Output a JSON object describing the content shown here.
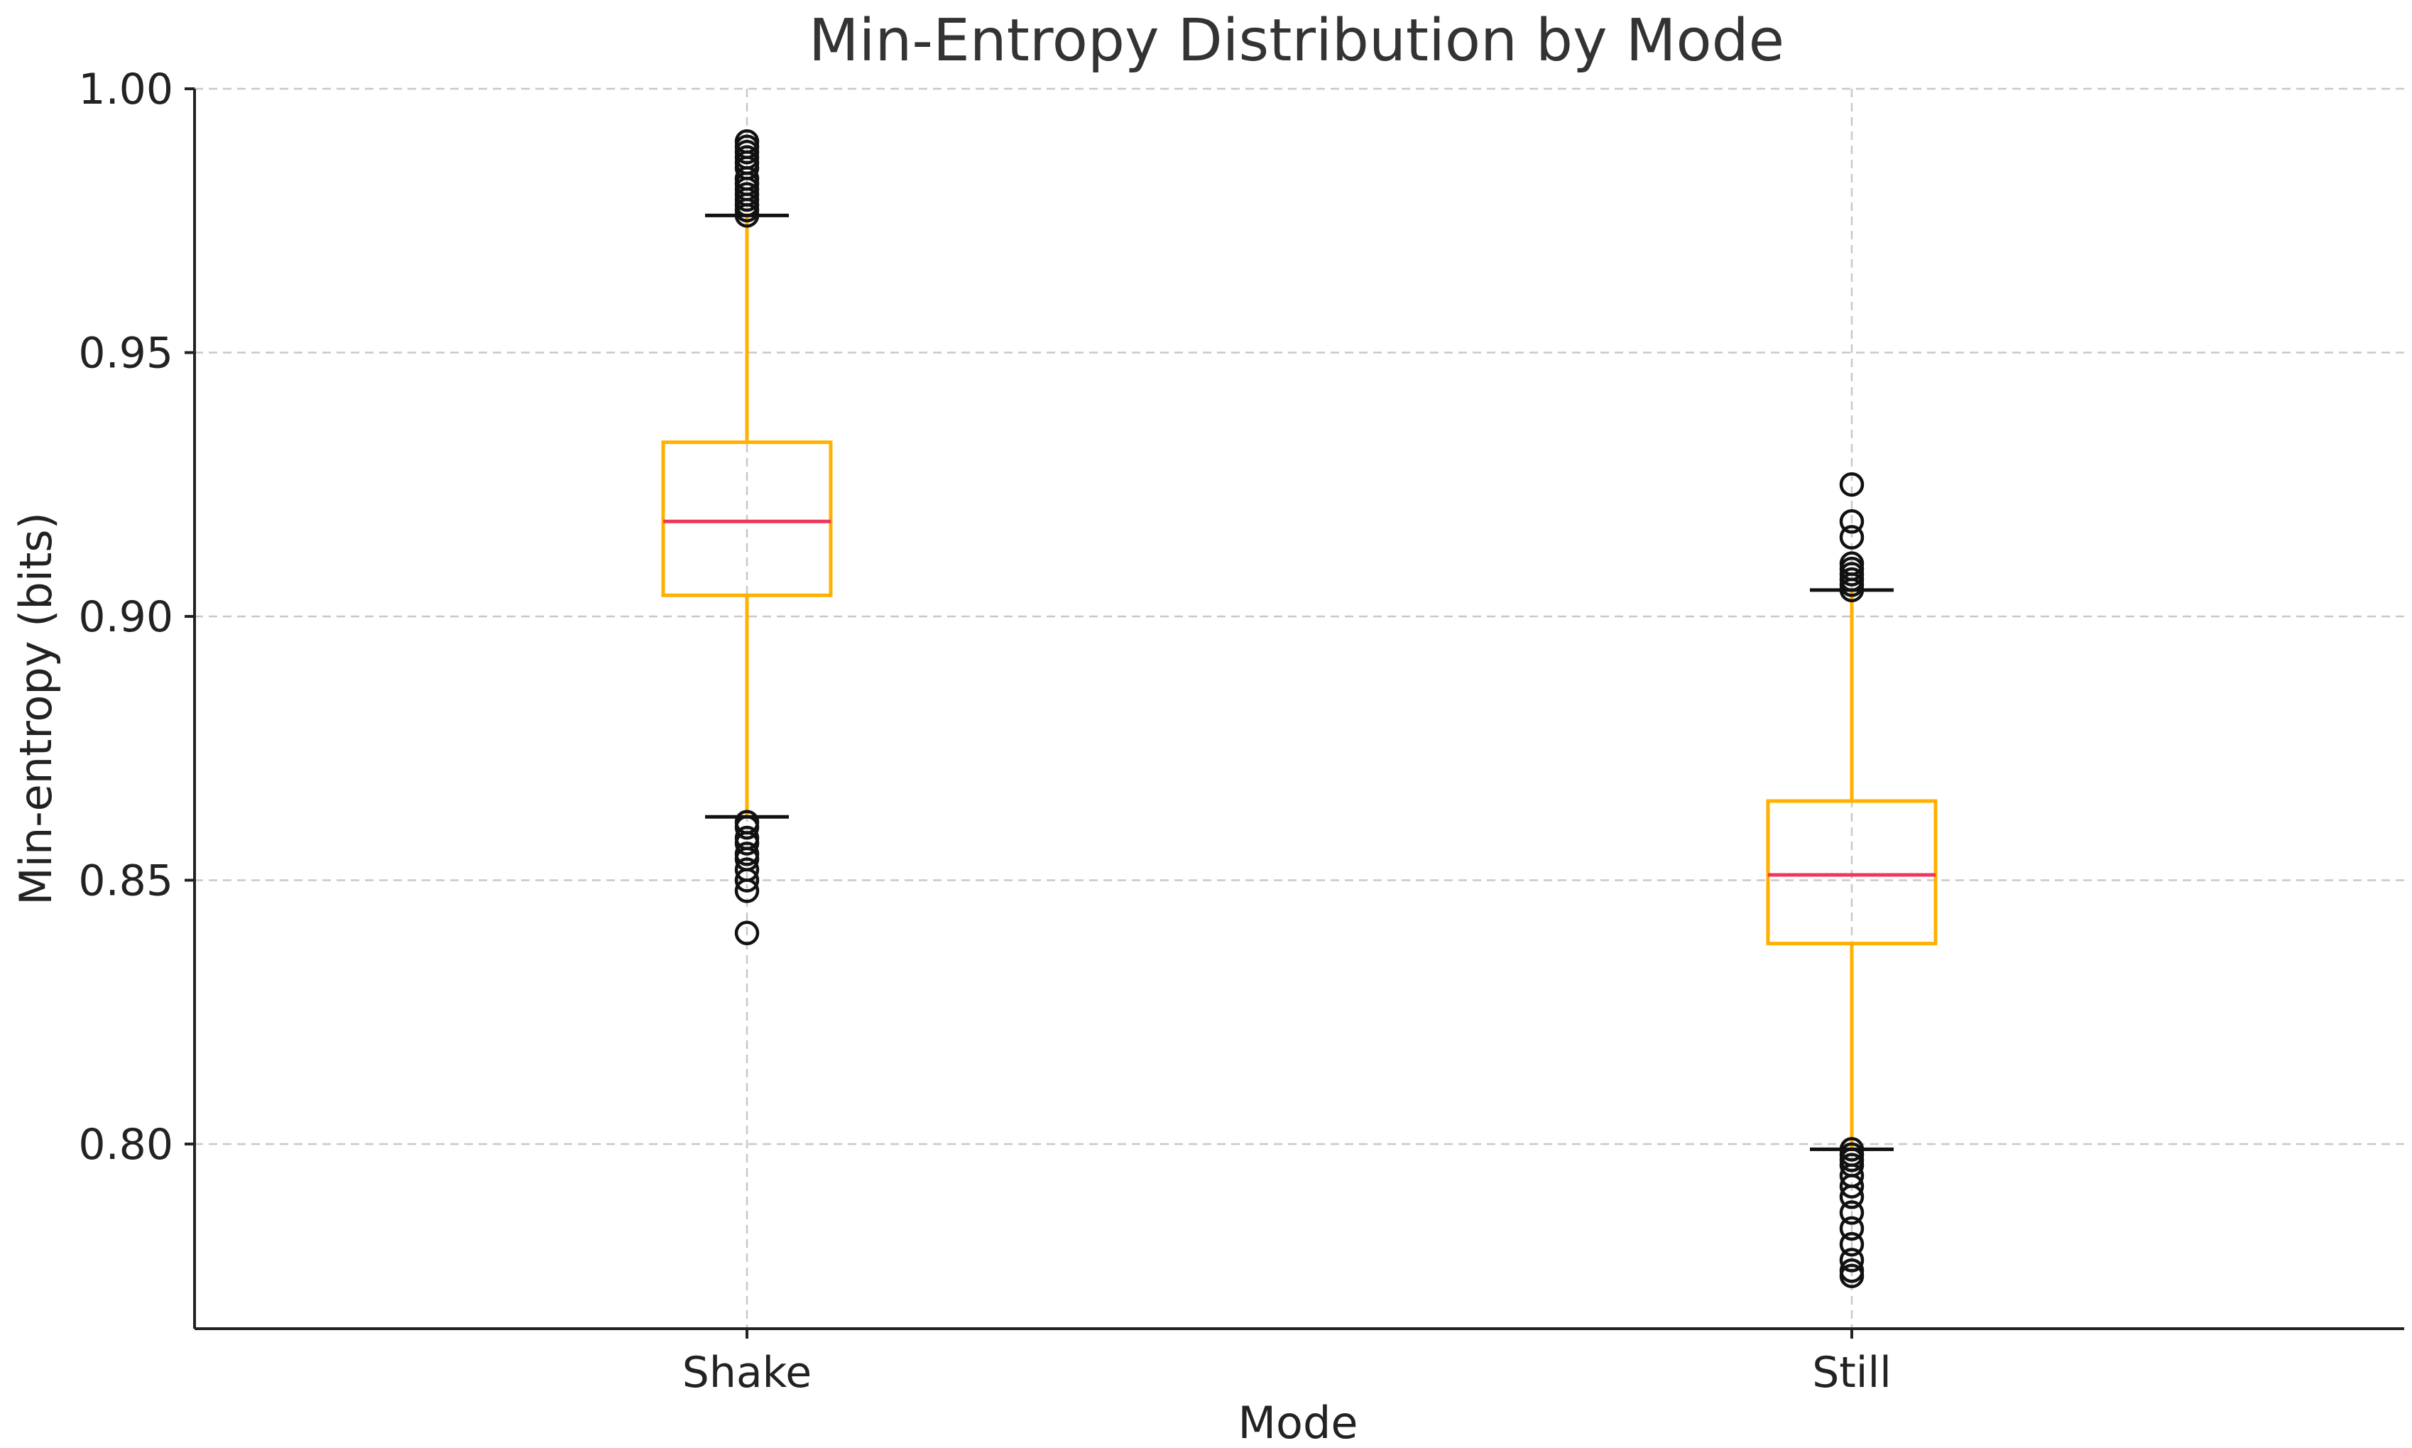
{
  "chart_data": {
    "type": "box",
    "title": "Min-Entropy Distribution by Mode",
    "xlabel": "Mode",
    "ylabel": "Min-entropy (bits)",
    "ylim": [
      0.765,
      1.0
    ],
    "yticks": [
      "0.80",
      "0.85",
      "0.90",
      "0.95",
      "1.00"
    ],
    "grid": true,
    "colors": {
      "box": "#FFB000",
      "median": "#F0365A",
      "whisker": "#FFB000",
      "cap": "#111111",
      "flier": "#111111"
    },
    "categories": [
      "Shake",
      "Still"
    ],
    "series": [
      {
        "q1": 0.904,
        "median": 0.918,
        "q3": 0.933,
        "whisker_low": 0.862,
        "whisker_high": 0.976,
        "outliers": [
          0.976,
          0.977,
          0.978,
          0.979,
          0.98,
          0.981,
          0.982,
          0.983,
          0.985,
          0.986,
          0.987,
          0.988,
          0.989,
          0.99,
          0.861,
          0.86,
          0.858,
          0.857,
          0.855,
          0.854,
          0.852,
          0.85,
          0.848,
          0.84
        ]
      },
      {
        "q1": 0.838,
        "median": 0.851,
        "q3": 0.865,
        "whisker_low": 0.799,
        "whisker_high": 0.905,
        "outliers": [
          0.905,
          0.906,
          0.907,
          0.908,
          0.909,
          0.91,
          0.915,
          0.918,
          0.925,
          0.799,
          0.798,
          0.797,
          0.796,
          0.794,
          0.792,
          0.79,
          0.787,
          0.784,
          0.781,
          0.778,
          0.776,
          0.775
        ]
      }
    ]
  }
}
